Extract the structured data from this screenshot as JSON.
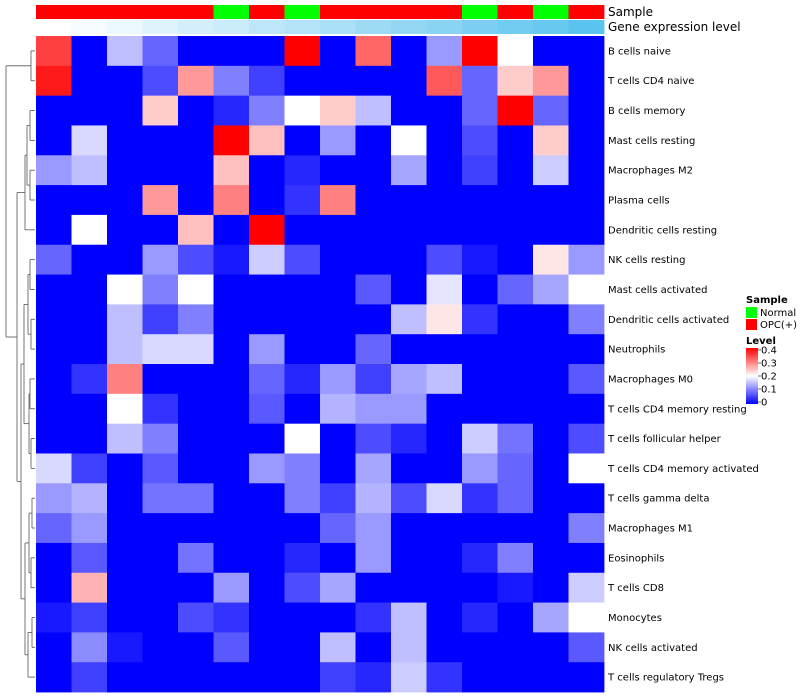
{
  "chart_data": {
    "type": "heatmap",
    "annotation_titles": {
      "sample": "Sample",
      "expression": "Gene expression level"
    },
    "rows": [
      "B cells naive",
      "T cells CD4 naive",
      "B cells memory",
      "Mast cells resting",
      "Macrophages M2",
      "Plasma cells",
      "Dendritic cells resting",
      "NK cells resting",
      "Mast cells activated",
      "Dendritic cells activated",
      "Neutrophils",
      "Macrophages M0",
      "T cells CD4 memory resting",
      "T cells follicular helper",
      "T cells CD4 memory activated",
      "T cells gamma delta",
      "Macrophages M1",
      "Eosinophils",
      "T cells CD8",
      "Monocytes",
      "NK cells activated",
      "T cells regulatory  Tregs"
    ],
    "sample_annotation": [
      "OPC(+)",
      "OPC(+)",
      "OPC(+)",
      "OPC(+)",
      "OPC(+)",
      "Normal",
      "OPC(+)",
      "Normal",
      "OPC(+)",
      "OPC(+)",
      "OPC(+)",
      "OPC(+)",
      "Normal",
      "OPC(+)",
      "Normal",
      "OPC(+)"
    ],
    "expression_annotation": [
      0.0,
      0.03,
      0.06,
      0.1,
      0.13,
      0.16,
      0.2,
      0.23,
      0.26,
      0.3,
      0.33,
      0.36,
      0.4,
      0.43,
      0.46,
      0.5
    ],
    "values": [
      [
        0.35,
        0.0,
        0.15,
        0.08,
        0.0,
        0.0,
        0.0,
        0.4,
        0.0,
        0.32,
        0.0,
        0.12,
        0.4,
        0.2,
        0.0,
        0.0
      ],
      [
        0.38,
        0.0,
        0.0,
        0.06,
        0.28,
        0.1,
        0.05,
        0.0,
        0.0,
        0.0,
        0.0,
        0.33,
        0.08,
        0.24,
        0.28,
        0.0
      ],
      [
        0.0,
        0.0,
        0.0,
        0.24,
        0.0,
        0.03,
        0.1,
        0.2,
        0.24,
        0.15,
        0.0,
        0.0,
        0.08,
        0.4,
        0.08,
        0.0
      ],
      [
        0.0,
        0.17,
        0.0,
        0.0,
        0.0,
        0.4,
        0.25,
        0.0,
        0.12,
        0.0,
        0.2,
        0.0,
        0.06,
        0.0,
        0.24,
        0.0
      ],
      [
        0.12,
        0.15,
        0.0,
        0.0,
        0.0,
        0.25,
        0.0,
        0.03,
        0.0,
        0.0,
        0.13,
        0.0,
        0.05,
        0.0,
        0.16,
        0.0
      ],
      [
        0.0,
        0.0,
        0.0,
        0.28,
        0.0,
        0.3,
        0.0,
        0.04,
        0.3,
        0.0,
        0.0,
        0.0,
        0.0,
        0.0,
        0.0,
        0.0
      ],
      [
        0.0,
        0.2,
        0.0,
        0.0,
        0.25,
        0.0,
        0.4,
        0.0,
        0.0,
        0.0,
        0.0,
        0.0,
        0.0,
        0.0,
        0.0,
        0.0
      ],
      [
        0.08,
        0.0,
        0.0,
        0.12,
        0.06,
        0.02,
        0.16,
        0.06,
        0.0,
        0.0,
        0.0,
        0.06,
        0.02,
        0.0,
        0.22,
        0.12
      ],
      [
        0.0,
        0.0,
        0.2,
        0.1,
        0.2,
        0.0,
        0.0,
        0.0,
        0.0,
        0.07,
        0.0,
        0.18,
        0.0,
        0.08,
        0.13,
        0.2
      ],
      [
        0.0,
        0.0,
        0.15,
        0.05,
        0.1,
        0.0,
        0.0,
        0.0,
        0.0,
        0.0,
        0.15,
        0.22,
        0.04,
        0.0,
        0.0,
        0.1
      ],
      [
        0.0,
        0.0,
        0.15,
        0.17,
        0.17,
        0.0,
        0.12,
        0.0,
        0.0,
        0.08,
        0.0,
        0.0,
        0.0,
        0.0,
        0.0,
        0.0
      ],
      [
        0.0,
        0.04,
        0.3,
        0.0,
        0.0,
        0.0,
        0.08,
        0.03,
        0.12,
        0.05,
        0.13,
        0.15,
        0.0,
        0.0,
        0.0,
        0.07
      ],
      [
        0.0,
        0.0,
        0.2,
        0.04,
        0.0,
        0.0,
        0.07,
        0.0,
        0.14,
        0.12,
        0.12,
        0.0,
        0.0,
        0.0,
        0.0,
        0.0
      ],
      [
        0.0,
        0.0,
        0.15,
        0.1,
        0.0,
        0.0,
        0.0,
        0.2,
        0.0,
        0.06,
        0.03,
        0.0,
        0.16,
        0.09,
        0.0,
        0.06
      ],
      [
        0.17,
        0.05,
        0.0,
        0.07,
        0.0,
        0.0,
        0.12,
        0.1,
        0.0,
        0.13,
        0.0,
        0.0,
        0.12,
        0.08,
        0.0,
        0.2
      ],
      [
        0.12,
        0.14,
        0.0,
        0.09,
        0.09,
        0.0,
        0.0,
        0.1,
        0.05,
        0.14,
        0.06,
        0.17,
        0.04,
        0.08,
        0.0,
        0.0
      ],
      [
        0.08,
        0.12,
        0.0,
        0.0,
        0.0,
        0.0,
        0.0,
        0.0,
        0.08,
        0.12,
        0.0,
        0.0,
        0.0,
        0.0,
        0.0,
        0.1
      ],
      [
        0.0,
        0.07,
        0.0,
        0.0,
        0.09,
        0.0,
        0.0,
        0.03,
        0.0,
        0.12,
        0.0,
        0.0,
        0.03,
        0.1,
        0.0,
        0.0
      ],
      [
        0.0,
        0.26,
        0.0,
        0.0,
        0.0,
        0.12,
        0.0,
        0.06,
        0.13,
        0.0,
        0.0,
        0.0,
        0.0,
        0.02,
        0.0,
        0.16
      ],
      [
        0.02,
        0.05,
        0.0,
        0.0,
        0.06,
        0.04,
        0.0,
        0.0,
        0.0,
        0.04,
        0.15,
        0.0,
        0.03,
        0.0,
        0.13,
        0.2
      ],
      [
        0.0,
        0.11,
        0.02,
        0.0,
        0.0,
        0.07,
        0.0,
        0.0,
        0.15,
        0.0,
        0.15,
        0.0,
        0.0,
        0.0,
        0.0,
        0.07
      ],
      [
        0.0,
        0.05,
        0.0,
        0.0,
        0.0,
        0.0,
        0.0,
        0.0,
        0.05,
        0.03,
        0.16,
        0.04,
        0.0,
        0.0,
        0.0,
        0.0
      ]
    ],
    "legend_sample": {
      "title": "Sample",
      "items": [
        {
          "label": "Normal",
          "color": "#00ff00"
        },
        {
          "label": "OPC(+)",
          "color": "#ff0000"
        }
      ]
    },
    "legend_level": {
      "title": "Level",
      "ticks": [
        "0.4",
        "0.3",
        "0.2",
        "0.1",
        "0"
      ],
      "min": 0,
      "max": 0.4
    },
    "colors": {
      "low": "#0000ff",
      "mid": "#ffffff",
      "high": "#ff0000",
      "expr_low": "#ffffff",
      "expr_high": "#5bc3ef"
    }
  }
}
